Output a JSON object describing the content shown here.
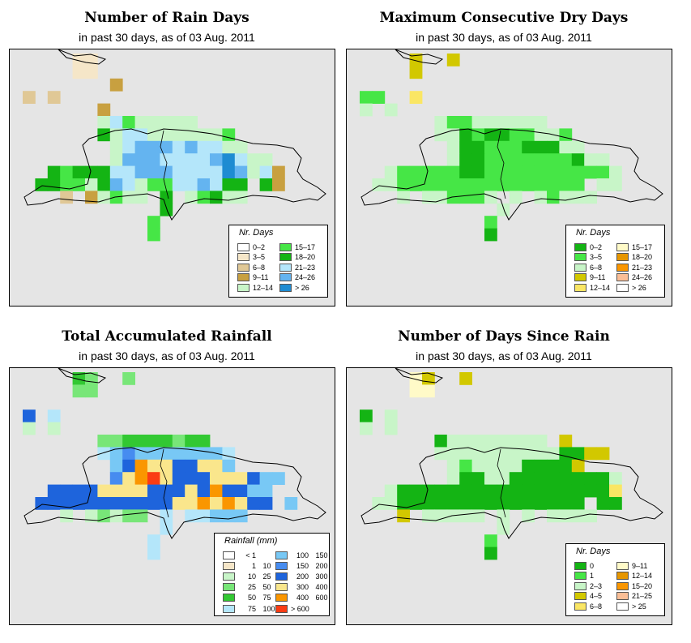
{
  "date_text": "in past 30 days, as of  03 Aug. 2011",
  "panels": [
    {
      "id": "rain-days",
      "title": "Number of Rain Days",
      "subtitle": "in past 30 days, as of  03 Aug. 2011",
      "legend": {
        "title": "Nr. Days",
        "items": [
          {
            "label": "0–2",
            "color": "#ffffff"
          },
          {
            "label": "3–5",
            "color": "#f5e6c8"
          },
          {
            "label": "6–8",
            "color": "#e0c896"
          },
          {
            "label": "9–11",
            "color": "#c8a040"
          },
          {
            "label": "12–14",
            "color": "#c8f5c8"
          },
          {
            "label": "15–17",
            "color": "#46e646"
          },
          {
            "label": "18–20",
            "color": "#14b414"
          },
          {
            "label": "21–23",
            "color": "#b4e6fa"
          },
          {
            "label": "24–26",
            "color": "#64b4f0"
          },
          {
            "label": "> 26",
            "color": "#1e8cd2"
          }
        ]
      }
    },
    {
      "id": "max-dry-days",
      "title": "Maximum Consecutive Dry Days",
      "subtitle": "in past 30 days, as of  03 Aug. 2011",
      "legend": {
        "title": "Nr. Days",
        "items": [
          {
            "label": "0–2",
            "color": "#14b414"
          },
          {
            "label": "3–5",
            "color": "#46e646"
          },
          {
            "label": "6–8",
            "color": "#c8f5c8"
          },
          {
            "label": "9–11",
            "color": "#d2c800"
          },
          {
            "label": "12–14",
            "color": "#fae664"
          },
          {
            "label": "15–17",
            "color": "#fffac8"
          },
          {
            "label": "18–20",
            "color": "#e69600"
          },
          {
            "label": "21–23",
            "color": "#fa9600"
          },
          {
            "label": "24–26",
            "color": "#fabe96"
          },
          {
            "label": "> 26",
            "color": "#ffffff"
          }
        ]
      }
    },
    {
      "id": "total-rainfall",
      "title": "Total Accumulated Rainfall",
      "subtitle": "in past 30 days, as of  03 Aug. 2011",
      "legend": {
        "title": "Rainfall (mm)",
        "items": [
          {
            "label": "< 1",
            "label2": "",
            "color": "#ffffff"
          },
          {
            "label": "1",
            "label2": "10",
            "color": "#f5e6c8"
          },
          {
            "label": "10",
            "label2": "25",
            "color": "#c8f5c8"
          },
          {
            "label": "25",
            "label2": "50",
            "color": "#78e678"
          },
          {
            "label": "50",
            "label2": "75",
            "color": "#32c832"
          },
          {
            "label": "75",
            "label2": "100",
            "color": "#b4e6fa"
          },
          {
            "label": "100",
            "label2": "150",
            "color": "#78c8f5"
          },
          {
            "label": "150",
            "label2": "200",
            "color": "#468cf0"
          },
          {
            "label": "200",
            "label2": "300",
            "color": "#1e64dc"
          },
          {
            "label": "300",
            "label2": "400",
            "color": "#fae68c"
          },
          {
            "label": "400",
            "label2": "600",
            "color": "#fa9600"
          },
          {
            "label": "> 600",
            "label2": "",
            "color": "#fa3c14"
          }
        ]
      }
    },
    {
      "id": "days-since-rain",
      "title": "Number of Days Since Rain",
      "subtitle": "in past 30 days, as of  03 Aug. 2011",
      "legend": {
        "title": "Nr. Days",
        "items": [
          {
            "label": "0",
            "color": "#14b414"
          },
          {
            "label": "1",
            "color": "#46e646"
          },
          {
            "label": "2–3",
            "color": "#c8f5c8"
          },
          {
            "label": "4–5",
            "color": "#d2c800"
          },
          {
            "label": "6–8",
            "color": "#fae664"
          },
          {
            "label": "9–11",
            "color": "#fffac8"
          },
          {
            "label": "12–14",
            "color": "#e69600"
          },
          {
            "label": "15–20",
            "color": "#fa9600"
          },
          {
            "label": "21–25",
            "color": "#fabe96"
          },
          {
            "label": "> 25",
            "color": "#ffffff"
          }
        ]
      }
    }
  ]
}
